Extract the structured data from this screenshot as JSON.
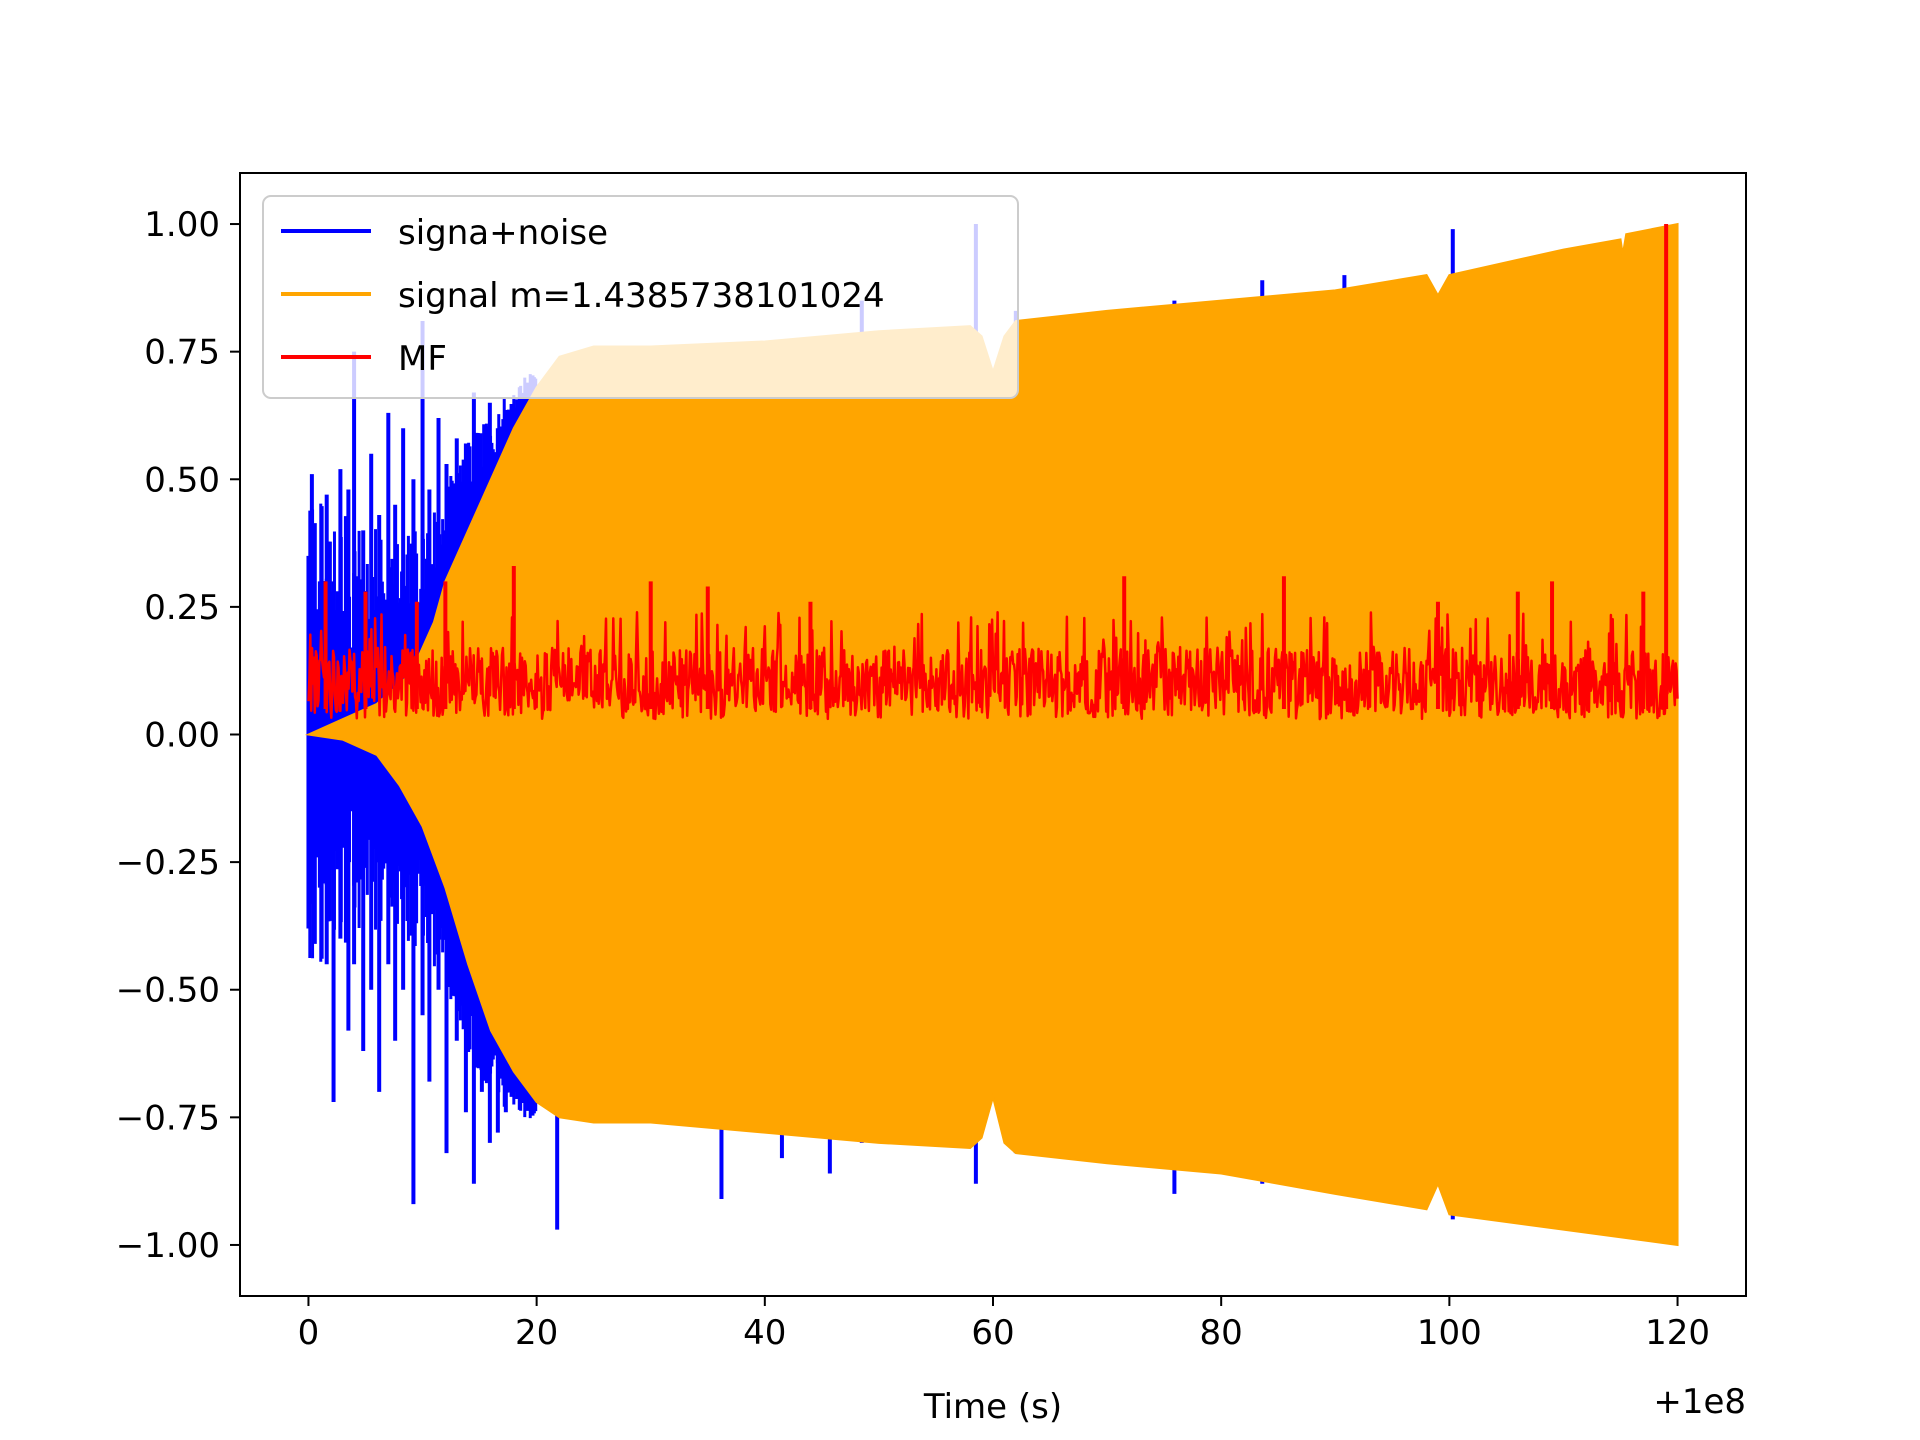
{
  "chart_data": {
    "type": "line",
    "title": "",
    "xlabel": "Time (s)",
    "ylabel": "",
    "x_offset_label": "+1e8",
    "xlim": [
      -6,
      126
    ],
    "ylim": [
      -1.1,
      1.1
    ],
    "x_ticks": [
      {
        "value": 0,
        "label": "0"
      },
      {
        "value": 20,
        "label": "20"
      },
      {
        "value": 40,
        "label": "40"
      },
      {
        "value": 60,
        "label": "60"
      },
      {
        "value": 80,
        "label": "80"
      },
      {
        "value": 100,
        "label": "100"
      },
      {
        "value": 120,
        "label": "120"
      }
    ],
    "y_ticks": [
      {
        "value": 1.0,
        "label": "1.00"
      },
      {
        "value": 0.75,
        "label": "0.75"
      },
      {
        "value": 0.5,
        "label": "0.50"
      },
      {
        "value": 0.25,
        "label": "0.25"
      },
      {
        "value": 0.0,
        "label": "0.00"
      },
      {
        "value": -0.25,
        "label": "−0.25"
      },
      {
        "value": -0.5,
        "label": "−0.50"
      },
      {
        "value": -0.75,
        "label": "−0.75"
      },
      {
        "value": -1.0,
        "label": "−1.00"
      }
    ],
    "grid": false,
    "legend_position": "top-left",
    "series": [
      {
        "name": "signa+noise",
        "color": "#0000ff",
        "x_range": [
          0,
          120
        ],
        "spikes": [
          [
            0.0,
            0.35,
            -0.38
          ],
          [
            0.3,
            0.51,
            -0.2
          ],
          [
            1.0,
            0.3,
            -0.3
          ],
          [
            1.6,
            0.47,
            -0.45
          ],
          [
            2.2,
            0.3,
            -0.72
          ],
          [
            2.8,
            0.52,
            -0.4
          ],
          [
            3.5,
            0.48,
            -0.58
          ],
          [
            4.0,
            0.75,
            -0.45
          ],
          [
            4.8,
            0.4,
            -0.62
          ],
          [
            5.5,
            0.55,
            -0.5
          ],
          [
            6.2,
            0.43,
            -0.7
          ],
          [
            7.0,
            0.63,
            -0.45
          ],
          [
            7.6,
            0.45,
            -0.6
          ],
          [
            8.3,
            0.6,
            -0.5
          ],
          [
            9.2,
            0.5,
            -0.92
          ],
          [
            10.0,
            0.81,
            -0.55
          ],
          [
            10.6,
            0.48,
            -0.68
          ],
          [
            11.4,
            0.62,
            -0.5
          ],
          [
            12.1,
            0.53,
            -0.82
          ],
          [
            13.0,
            0.58,
            -0.6
          ],
          [
            13.8,
            0.57,
            -0.74
          ],
          [
            14.5,
            0.67,
            -0.88
          ],
          [
            15.2,
            0.52,
            -0.7
          ],
          [
            15.9,
            0.65,
            -0.8
          ],
          [
            16.6,
            0.6,
            -0.78
          ],
          [
            17.3,
            0.54,
            -0.74
          ],
          [
            18.2,
            0.57,
            -0.7
          ],
          [
            19.0,
            0.6,
            -0.68
          ],
          [
            21.8,
            0.6,
            -0.97
          ],
          [
            36.2,
            0.7,
            -0.91
          ],
          [
            41.5,
            0.75,
            -0.83
          ],
          [
            45.7,
            0.78,
            -0.86
          ],
          [
            48.5,
            0.85,
            -0.8
          ],
          [
            58.5,
            1.0,
            -0.88
          ],
          [
            62.0,
            0.83,
            -0.82
          ],
          [
            75.9,
            0.85,
            -0.9
          ],
          [
            83.6,
            0.89,
            -0.88
          ],
          [
            90.8,
            0.9,
            -0.9
          ],
          [
            100.3,
            0.99,
            -0.95
          ],
          [
            110.0,
            0.95,
            -0.97
          ],
          [
            119.8,
            0.99,
            -0.99
          ]
        ]
      },
      {
        "name": "signal m=1.4385738101024",
        "color": "#ffa500",
        "x_range": [
          0,
          120
        ],
        "envelope_upper": [
          [
            0,
            0.0
          ],
          [
            3,
            0.03
          ],
          [
            6,
            0.06
          ],
          [
            9,
            0.12
          ],
          [
            11,
            0.22
          ],
          [
            12,
            0.3
          ],
          [
            14,
            0.4
          ],
          [
            16,
            0.5
          ],
          [
            18,
            0.6
          ],
          [
            20,
            0.68
          ],
          [
            22,
            0.74
          ],
          [
            25,
            0.76
          ],
          [
            30,
            0.76
          ],
          [
            40,
            0.77
          ],
          [
            50,
            0.79
          ],
          [
            58,
            0.8
          ],
          [
            59,
            0.78
          ],
          [
            60,
            0.71
          ],
          [
            61,
            0.78
          ],
          [
            62,
            0.81
          ],
          [
            70,
            0.83
          ],
          [
            80,
            0.85
          ],
          [
            90,
            0.87
          ],
          [
            98,
            0.9
          ],
          [
            99,
            0.86
          ],
          [
            100,
            0.9
          ],
          [
            110,
            0.95
          ],
          [
            115,
            0.97
          ],
          [
            115.2,
            0.94
          ],
          [
            115.5,
            0.98
          ],
          [
            120,
            1.0
          ]
        ],
        "envelope_lower": [
          [
            0,
            0.0
          ],
          [
            3,
            -0.01
          ],
          [
            6,
            -0.04
          ],
          [
            8,
            -0.1
          ],
          [
            10,
            -0.18
          ],
          [
            12,
            -0.3
          ],
          [
            14,
            -0.45
          ],
          [
            16,
            -0.58
          ],
          [
            18,
            -0.66
          ],
          [
            20,
            -0.72
          ],
          [
            22,
            -0.75
          ],
          [
            25,
            -0.76
          ],
          [
            30,
            -0.76
          ],
          [
            40,
            -0.78
          ],
          [
            50,
            -0.8
          ],
          [
            58,
            -0.81
          ],
          [
            59,
            -0.79
          ],
          [
            60,
            -0.71
          ],
          [
            61,
            -0.8
          ],
          [
            62,
            -0.82
          ],
          [
            70,
            -0.84
          ],
          [
            80,
            -0.86
          ],
          [
            90,
            -0.9
          ],
          [
            98,
            -0.93
          ],
          [
            99,
            -0.88
          ],
          [
            100,
            -0.94
          ],
          [
            110,
            -0.97
          ],
          [
            120,
            -1.0
          ]
        ]
      },
      {
        "name": "MF",
        "color": "#ff0000",
        "x_range": [
          0,
          120
        ],
        "baseline_low": 0.03,
        "baseline_high": 0.17,
        "peaks": [
          [
            1.5,
            0.3
          ],
          [
            5.0,
            0.28
          ],
          [
            9.5,
            0.26
          ],
          [
            12.0,
            0.3
          ],
          [
            18.0,
            0.33
          ],
          [
            30.0,
            0.3
          ],
          [
            35.0,
            0.29
          ],
          [
            44.0,
            0.26
          ],
          [
            71.5,
            0.31
          ],
          [
            85.5,
            0.31
          ],
          [
            99.0,
            0.26
          ],
          [
            106.0,
            0.28
          ],
          [
            109.0,
            0.3
          ],
          [
            117.0,
            0.28
          ],
          [
            119.0,
            1.0
          ]
        ]
      }
    ]
  }
}
